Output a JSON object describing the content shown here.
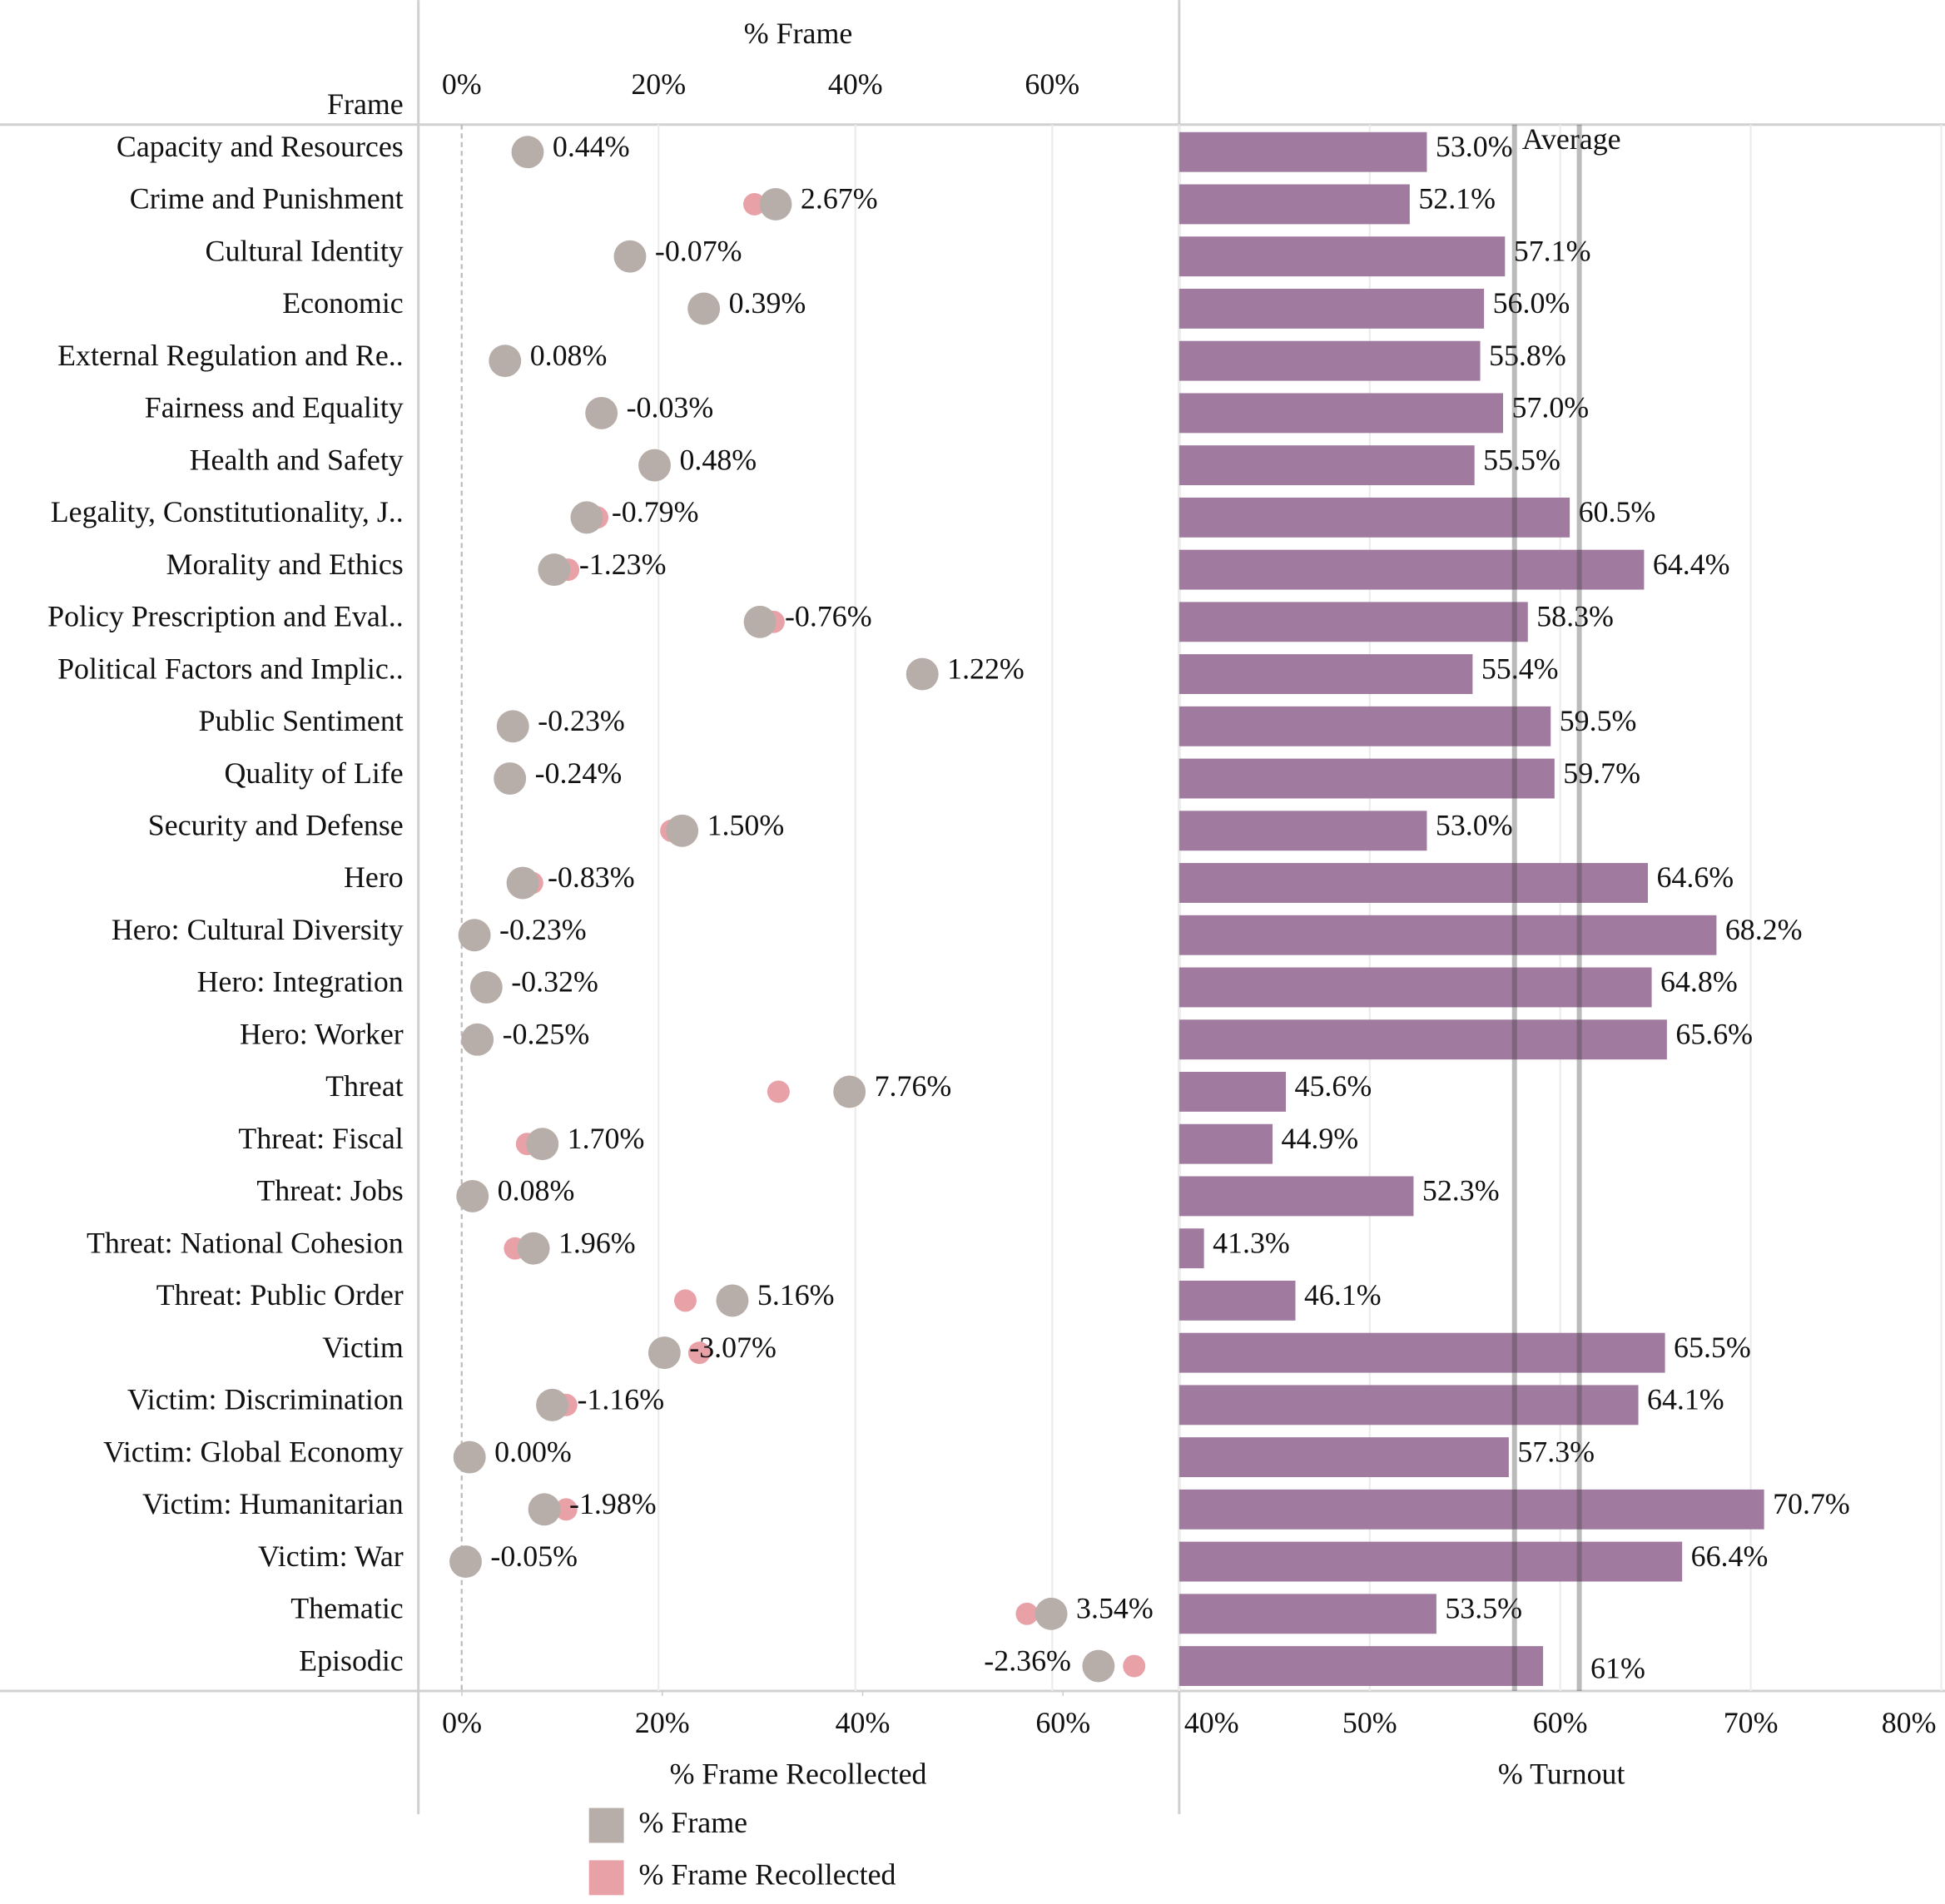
{
  "chart_data": [
    {
      "type": "dot",
      "row_header": "Frame",
      "xlabel": "% Frame",
      "x2label": "% Frame Recollected",
      "categories": [
        "Capacity and Resources",
        "Crime and Punishment",
        "Cultural Identity",
        "Economic",
        "External Regulation and Re..",
        "Fairness and Equality",
        "Health and Safety",
        "Legality, Constitutionality, J..",
        "Morality and Ethics",
        "Policy Prescription and Eval..",
        "Political Factors and Implic..",
        "Public Sentiment",
        "Quality of Life",
        "Security and Defense",
        "Hero",
        "Hero: Cultural Diversity",
        "Hero: Integration",
        "Hero: Worker",
        "Threat",
        "Threat: Fiscal",
        "Threat: Jobs",
        "Threat: National Cohesion",
        "Threat: Public Order",
        "Victim",
        "Victim: Discrimination",
        "Victim: Global Economy",
        "Victim: Humanitarian",
        "Victim: War",
        "Thematic",
        "Episodic"
      ],
      "xlim": [
        -4.4,
        72.9
      ],
      "xticks": [
        {
          "value": 0,
          "label": "0%"
        },
        {
          "value": 20,
          "label": "20%"
        },
        {
          "value": 40,
          "label": "40%"
        },
        {
          "value": 60,
          "label": "60%"
        }
      ],
      "x2lim": [
        -4.35,
        71.6
      ],
      "x2ticks": [
        {
          "value": 0,
          "label": "0%"
        },
        {
          "value": 20,
          "label": "20%"
        },
        {
          "value": 40,
          "label": "40%"
        },
        {
          "value": 60,
          "label": "60%"
        }
      ],
      "series": [
        {
          "name": "% Frame",
          "color": "#b7aea9",
          "values": [
            6.7,
            31.9,
            17.1,
            24.6,
            4.4,
            14.2,
            19.6,
            12.7,
            9.4,
            30.3,
            46.8,
            5.2,
            4.9,
            22.4,
            6.2,
            1.3,
            2.5,
            1.6,
            39.4,
            8.2,
            1.1,
            7.3,
            27.5,
            20.6,
            9.2,
            0.8,
            8.4,
            0.4,
            59.9,
            64.7
          ]
        },
        {
          "name": "% Frame Recollected",
          "color": "#e9a1a8",
          "axis": "x2",
          "values": [
            6.3,
            29.2,
            17.2,
            24.2,
            4.3,
            14.2,
            19.1,
            13.5,
            10.6,
            31.1,
            45.6,
            5.4,
            5.1,
            20.9,
            7.0,
            1.5,
            2.8,
            1.9,
            31.6,
            6.5,
            1.0,
            5.3,
            22.3,
            23.7,
            10.4,
            0.8,
            10.4,
            0.4,
            56.4,
            67.1
          ]
        }
      ],
      "differences": {
        "values": [
          0.44,
          2.67,
          -0.07,
          0.39,
          0.08,
          -0.03,
          0.48,
          -0.79,
          -1.23,
          -0.76,
          1.22,
          -0.23,
          -0.24,
          1.5,
          -0.83,
          -0.23,
          -0.32,
          -0.25,
          7.76,
          1.7,
          0.08,
          1.96,
          5.16,
          -3.07,
          -1.16,
          0,
          -1.98,
          -0.05,
          3.54,
          -2.36
        ],
        "value_labels": [
          "0.44%",
          "2.67%",
          "-0.07%",
          "0.39%",
          "0.08%",
          "-0.03%",
          "0.48%",
          "-0.79%",
          "-1.23%",
          "-0.76%",
          "1.22%",
          "-0.23%",
          "-0.24%",
          "1.50%",
          "-0.83%",
          "-0.23%",
          "-0.32%",
          "-0.25%",
          "7.76%",
          "1.70%",
          "0.08%",
          "1.96%",
          "5.16%",
          "-3.07%",
          "-1.16%",
          "0.00%",
          "-1.98%",
          "-0.05%",
          "3.54%",
          "-2.36%"
        ]
      }
    },
    {
      "type": "bar",
      "xlabel": "% Turnout",
      "color": "#a07b9f",
      "xlim": [
        40,
        80
      ],
      "xticks": [
        {
          "value": 40,
          "label": "40%"
        },
        {
          "value": 50,
          "label": "50%"
        },
        {
          "value": 60,
          "label": "60%"
        },
        {
          "value": 70,
          "label": "70%"
        },
        {
          "value": 80,
          "label": "80%"
        }
      ],
      "values": [
        53.0,
        52.1,
        57.1,
        56.0,
        55.8,
        57.0,
        55.5,
        60.5,
        64.4,
        58.3,
        55.4,
        59.5,
        59.7,
        53.0,
        64.6,
        68.2,
        64.8,
        65.6,
        45.6,
        44.9,
        52.3,
        41.3,
        46.1,
        65.5,
        64.1,
        57.3,
        70.7,
        66.4,
        53.5,
        59.1
      ],
      "value_labels": [
        "53.0%",
        "52.1%",
        "57.1%",
        "56.0%",
        "55.8%",
        "57.0%",
        "55.5%",
        "60.5%",
        "64.4%",
        "58.3%",
        "55.4%",
        "59.5%",
        "59.7%",
        "53.0%",
        "64.6%",
        "68.2%",
        "64.8%",
        "65.6%",
        "45.6%",
        "44.9%",
        "52.3%",
        "41.3%",
        "46.1%",
        "65.5%",
        "64.1%",
        "57.3%",
        "70.7%",
        "66.4%",
        "53.5%",
        null
      ],
      "reference_lines": [
        {
          "value": 57.6,
          "label": "Average"
        },
        {
          "value": 61,
          "label": "61%"
        }
      ]
    }
  ]
}
